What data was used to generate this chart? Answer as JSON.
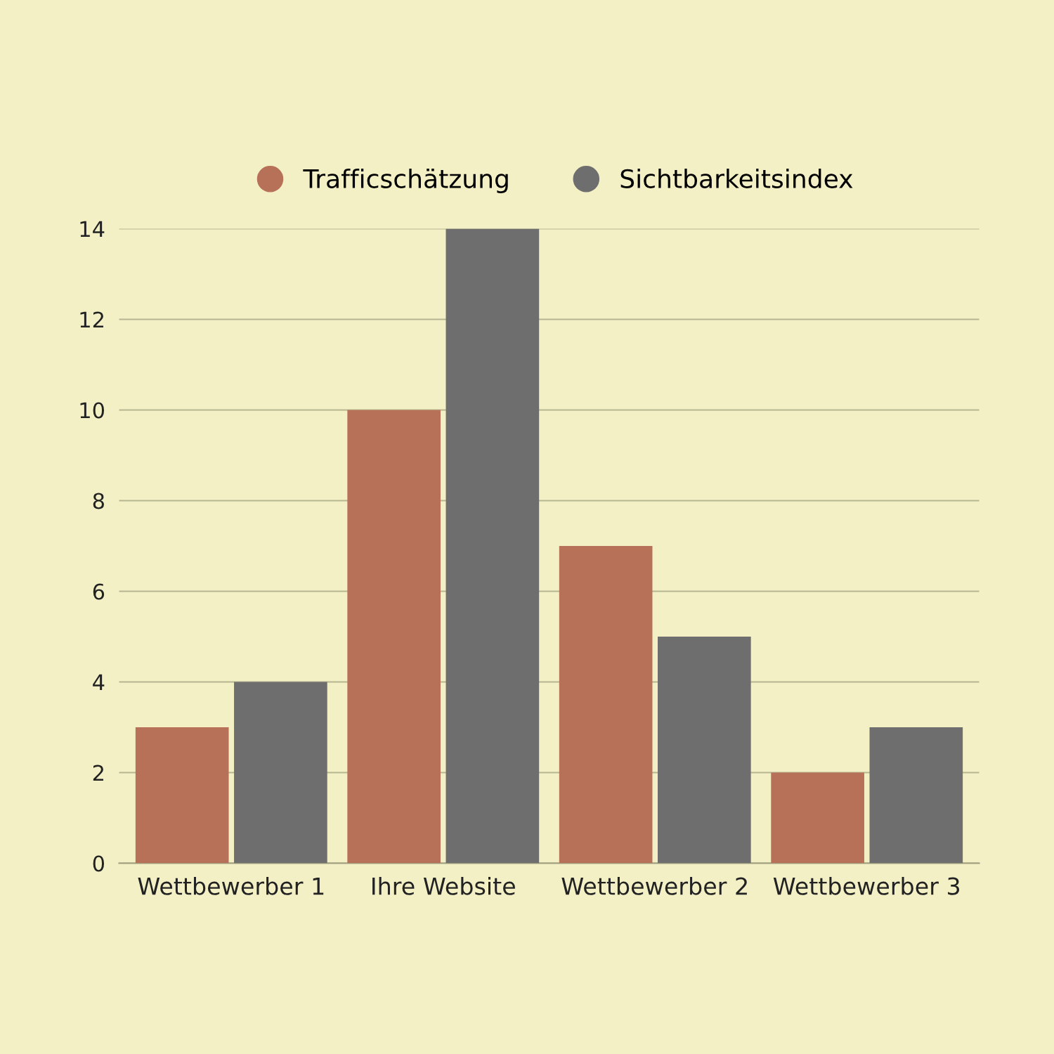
{
  "chart_data": {
    "type": "bar",
    "categories": [
      "Wettbewerber 1",
      "Ihre Website",
      "Wettbewerber 2",
      "Wettbewerber 3"
    ],
    "series": [
      {
        "name": "Trafficschätzung",
        "color": "#b87159",
        "values": [
          3,
          10,
          7,
          2
        ]
      },
      {
        "name": "Sichtbarkeitsindex",
        "color": "#6e6e6e",
        "values": [
          4,
          14,
          5,
          3
        ]
      }
    ],
    "ylim": [
      0,
      14
    ],
    "yticks": [
      0,
      2,
      4,
      6,
      8,
      10,
      12,
      14
    ],
    "grid": "y",
    "legend": "top"
  }
}
